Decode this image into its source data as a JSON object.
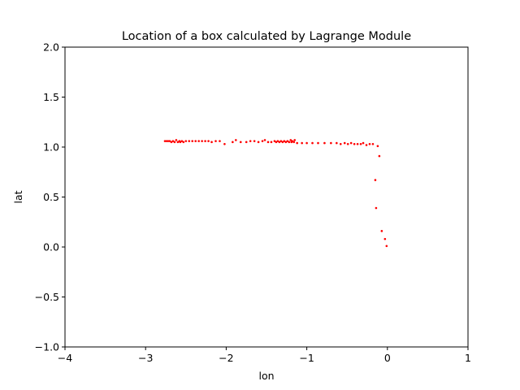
{
  "chart_data": {
    "type": "scatter",
    "title": "Location of a box calculated by Lagrange Module",
    "xlabel": "lon",
    "ylabel": "lat",
    "xlim": [
      -4,
      1
    ],
    "ylim": [
      -1.0,
      2.0
    ],
    "xticks": [
      -4,
      -3,
      -2,
      -1,
      0,
      1
    ],
    "xtick_labels": [
      "−4",
      "−3",
      "−2",
      "−1",
      "0",
      "1"
    ],
    "yticks": [
      -1.0,
      -0.5,
      0.0,
      0.5,
      1.0,
      1.5,
      2.0
    ],
    "ytick_labels": [
      "−1.0",
      "−0.5",
      "0.0",
      "0.5",
      "1.0",
      "1.5",
      "2.0"
    ],
    "grid": false,
    "marker_color": "#ff0000",
    "series": [
      {
        "points": [
          [
            -2.76,
            1.06
          ],
          [
            -2.74,
            1.06
          ],
          [
            -2.72,
            1.06
          ],
          [
            -2.7,
            1.06
          ],
          [
            -2.68,
            1.05
          ],
          [
            -2.66,
            1.06
          ],
          [
            -2.64,
            1.05
          ],
          [
            -2.62,
            1.07
          ],
          [
            -2.6,
            1.05
          ],
          [
            -2.58,
            1.06
          ],
          [
            -2.57,
            1.05
          ],
          [
            -2.55,
            1.06
          ],
          [
            -2.53,
            1.05
          ],
          [
            -2.5,
            1.06
          ],
          [
            -2.46,
            1.06
          ],
          [
            -2.42,
            1.06
          ],
          [
            -2.38,
            1.06
          ],
          [
            -2.34,
            1.06
          ],
          [
            -2.3,
            1.06
          ],
          [
            -2.26,
            1.06
          ],
          [
            -2.22,
            1.06
          ],
          [
            -2.18,
            1.05
          ],
          [
            -2.13,
            1.06
          ],
          [
            -2.08,
            1.06
          ],
          [
            -2.02,
            1.03
          ],
          [
            -1.92,
            1.05
          ],
          [
            -1.88,
            1.07
          ],
          [
            -1.82,
            1.05
          ],
          [
            -1.75,
            1.05
          ],
          [
            -1.7,
            1.06
          ],
          [
            -1.65,
            1.06
          ],
          [
            -1.6,
            1.05
          ],
          [
            -1.55,
            1.06
          ],
          [
            -1.52,
            1.07
          ],
          [
            -1.48,
            1.05
          ],
          [
            -1.44,
            1.05
          ],
          [
            -1.4,
            1.06
          ],
          [
            -1.38,
            1.05
          ],
          [
            -1.36,
            1.06
          ],
          [
            -1.34,
            1.05
          ],
          [
            -1.32,
            1.06
          ],
          [
            -1.3,
            1.05
          ],
          [
            -1.28,
            1.06
          ],
          [
            -1.26,
            1.05
          ],
          [
            -1.24,
            1.06
          ],
          [
            -1.22,
            1.05
          ],
          [
            -1.2,
            1.07
          ],
          [
            -1.19,
            1.05
          ],
          [
            -1.18,
            1.06
          ],
          [
            -1.16,
            1.05
          ],
          [
            -1.15,
            1.07
          ],
          [
            -1.12,
            1.04
          ],
          [
            -1.06,
            1.04
          ],
          [
            -1.0,
            1.04
          ],
          [
            -0.93,
            1.04
          ],
          [
            -0.86,
            1.04
          ],
          [
            -0.78,
            1.04
          ],
          [
            -0.7,
            1.04
          ],
          [
            -0.63,
            1.04
          ],
          [
            -0.58,
            1.03
          ],
          [
            -0.53,
            1.04
          ],
          [
            -0.49,
            1.03
          ],
          [
            -0.45,
            1.04
          ],
          [
            -0.41,
            1.03
          ],
          [
            -0.37,
            1.03
          ],
          [
            -0.33,
            1.03
          ],
          [
            -0.3,
            1.04
          ],
          [
            -0.26,
            1.02
          ],
          [
            -0.22,
            1.03
          ],
          [
            -0.18,
            1.03
          ],
          [
            -0.12,
            1.01
          ],
          [
            -0.1,
            0.91
          ],
          [
            -0.15,
            0.67
          ],
          [
            -0.14,
            0.39
          ],
          [
            -0.07,
            0.16
          ],
          [
            -0.03,
            0.08
          ],
          [
            -0.01,
            0.01
          ]
        ]
      }
    ]
  }
}
